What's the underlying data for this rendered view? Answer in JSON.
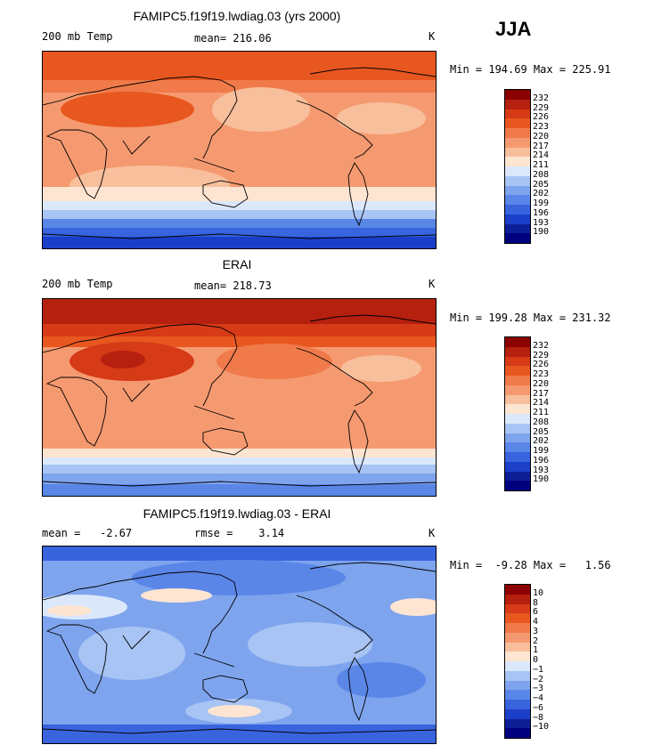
{
  "season": "JJA",
  "panels": [
    {
      "title": "FAMIPC5.f19f19.lwdiag.03 (yrs 2000)",
      "left_label": "200 mb Temp",
      "mid_label": "mean= 216.06",
      "units": "K",
      "range_text": "Min = 194.69 Max = 225.91",
      "colorbar": {
        "labels": [
          "232",
          "229",
          "226",
          "223",
          "220",
          "217",
          "214",
          "211",
          "208",
          "205",
          "202",
          "199",
          "196",
          "193",
          "190"
        ],
        "colors": [
          "#8b0000",
          "#b5200f",
          "#d63a16",
          "#e8571f",
          "#f07a4a",
          "#f59a70",
          "#f8bf9c",
          "#fde5d2",
          "#dbe8fb",
          "#a8c4f4",
          "#7ea4ee",
          "#5a86e8",
          "#3864de",
          "#1c3fc9",
          "#0d1f96",
          "#00007f"
        ]
      }
    },
    {
      "title": "ERAI",
      "left_label": "200 mb Temp",
      "mid_label": "mean= 218.73",
      "units": "K",
      "range_text": "Min = 199.28 Max = 231.32",
      "colorbar": {
        "labels": [
          "232",
          "229",
          "226",
          "223",
          "220",
          "217",
          "214",
          "211",
          "208",
          "205",
          "202",
          "199",
          "196",
          "193",
          "190"
        ],
        "colors": [
          "#8b0000",
          "#b5200f",
          "#d63a16",
          "#e8571f",
          "#f07a4a",
          "#f59a70",
          "#f8bf9c",
          "#fde5d2",
          "#dbe8fb",
          "#a8c4f4",
          "#7ea4ee",
          "#5a86e8",
          "#3864de",
          "#1c3fc9",
          "#0d1f96",
          "#00007f"
        ]
      }
    },
    {
      "title": "FAMIPC5.f19f19.lwdiag.03 - ERAI",
      "left_label": "mean =   -2.67",
      "mid_label": "rmse =    3.14",
      "units": "K",
      "range_text": "Min =  -9.28 Max =   1.56",
      "colorbar": {
        "labels": [
          "10",
          "8",
          "6",
          "4",
          "3",
          "2",
          "1",
          "0",
          "−1",
          "−2",
          "−3",
          "−4",
          "−6",
          "−8",
          "−10"
        ],
        "colors": [
          "#8b0000",
          "#b5200f",
          "#d63a16",
          "#e8571f",
          "#f07a4a",
          "#f59a70",
          "#f8bf9c",
          "#fde5d2",
          "#dbe8fb",
          "#a8c4f4",
          "#7ea4ee",
          "#5a86e8",
          "#3864de",
          "#1c3fc9",
          "#0d1f96",
          "#00007f"
        ]
      }
    }
  ]
}
